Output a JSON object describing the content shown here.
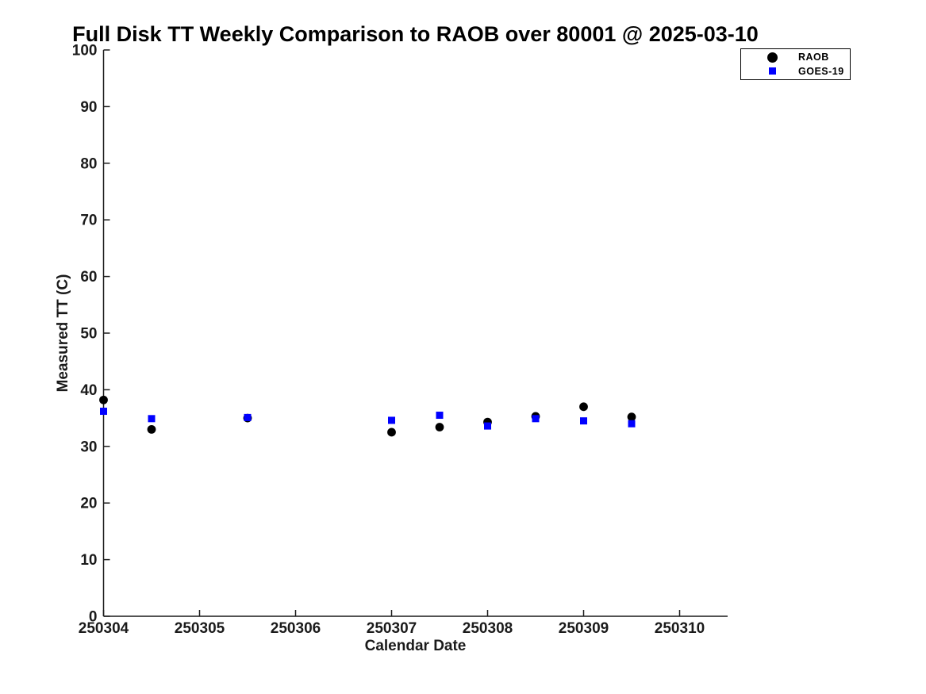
{
  "figure": {
    "title": "Full Disk TT Weekly Comparison to RAOB over 80001 @ 2025-03-10"
  },
  "chart_data": {
    "type": "scatter",
    "title": "Full Disk TT Weekly Comparison to RAOB over 80001 @ 2025-03-10",
    "xlabel": "Calendar Date",
    "ylabel": "Measured TT (C)",
    "xlim": [
      250304,
      250310.5
    ],
    "ylim": [
      0,
      100
    ],
    "xticks": [
      250304,
      250305,
      250306,
      250307,
      250308,
      250309,
      250310
    ],
    "yticks": [
      0,
      10,
      20,
      30,
      40,
      50,
      60,
      70,
      80,
      90,
      100
    ],
    "grid": false,
    "legend_position": "upper-right",
    "x": [
      250304,
      250304.5,
      250305.5,
      250307,
      250307.5,
      250308,
      250308.5,
      250309,
      250309.5
    ],
    "series": [
      {
        "name": "RAOB",
        "marker": "circle",
        "color": "#000000",
        "values": [
          38.2,
          33.0,
          35.0,
          32.5,
          33.4,
          34.3,
          35.3,
          37.0,
          35.2
        ]
      },
      {
        "name": "GOES-19",
        "marker": "square",
        "color": "#0000ff",
        "values": [
          36.2,
          34.9,
          35.1,
          34.6,
          35.5,
          33.6,
          34.9,
          34.5,
          34.0
        ]
      }
    ]
  }
}
